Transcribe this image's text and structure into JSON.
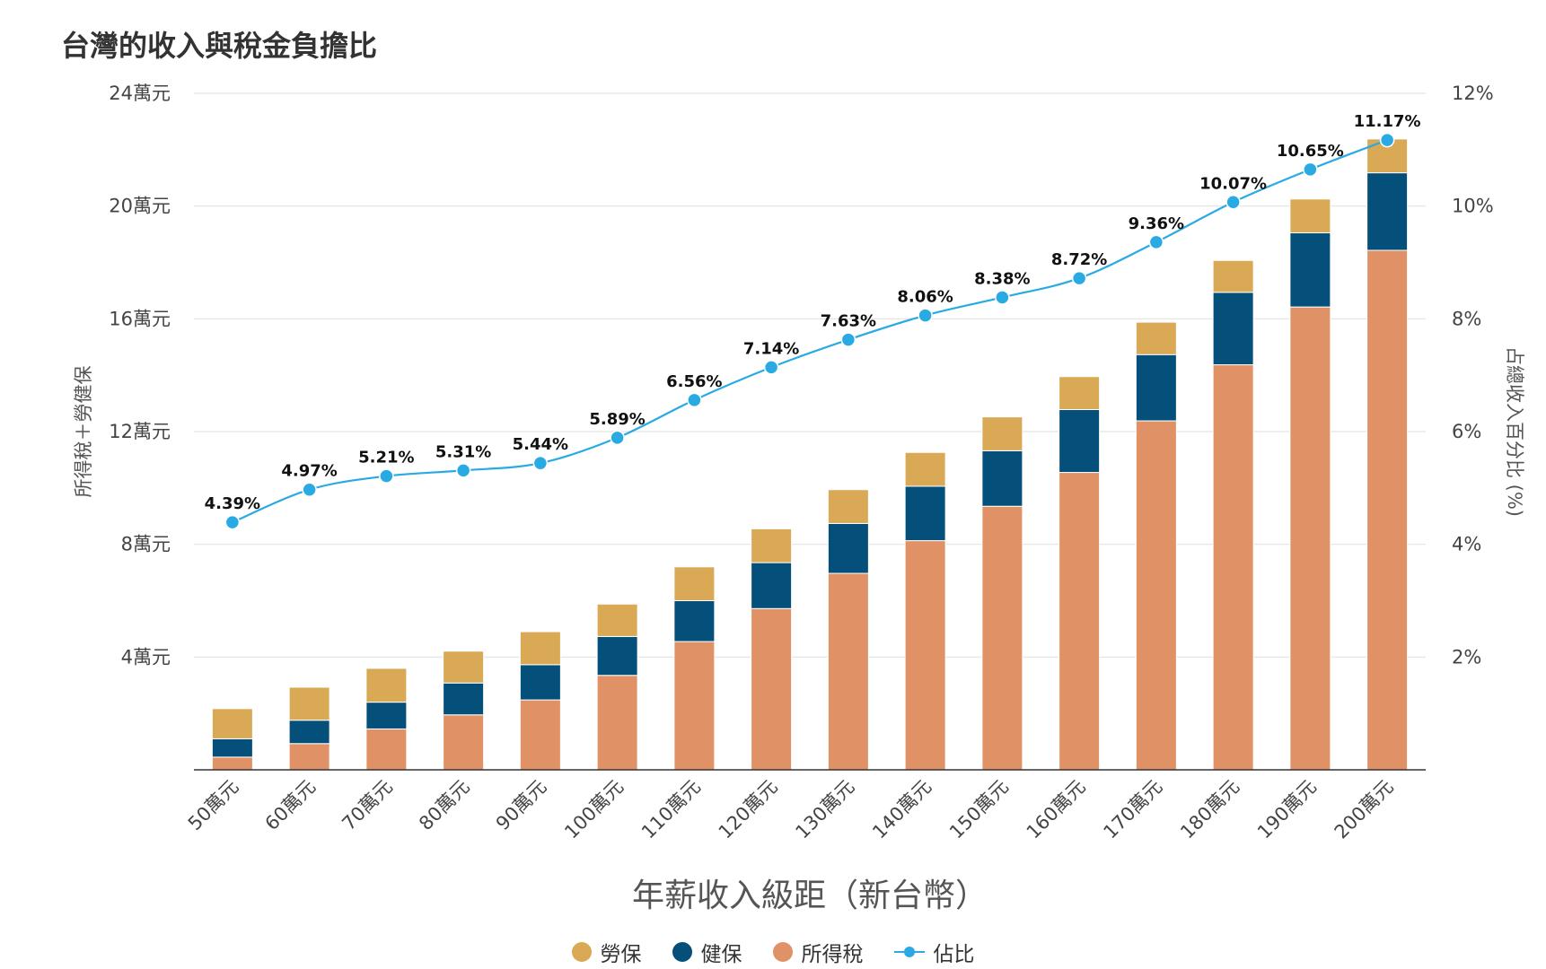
{
  "title": "台灣的收入與稅金負擔比",
  "chart_data": {
    "type": "bar",
    "stacked": true,
    "title": "台灣的收入與稅金負擔比",
    "xlabel": "年薪收入級距（新台幣）",
    "ylabel": "所得稅＋勞健保",
    "y2label": "占總收入百分比 (%)",
    "categories": [
      "50萬元",
      "60萬元",
      "70萬元",
      "80萬元",
      "90萬元",
      "100萬元",
      "110萬元",
      "120萬元",
      "130萬元",
      "140萬元",
      "150萬元",
      "160萬元",
      "170萬元",
      "180萬元",
      "190萬元",
      "200萬元"
    ],
    "ylim": [
      0,
      24
    ],
    "y_ticks": [
      {
        "value": 4,
        "label": "4萬元"
      },
      {
        "value": 8,
        "label": "8萬元"
      },
      {
        "value": 12,
        "label": "12萬元"
      },
      {
        "value": 16,
        "label": "16萬元"
      },
      {
        "value": 20,
        "label": "20萬元"
      },
      {
        "value": 24,
        "label": "24萬元"
      }
    ],
    "y2lim": [
      0,
      12
    ],
    "y2_ticks": [
      {
        "value": 2,
        "label": "2%"
      },
      {
        "value": 4,
        "label": "4%"
      },
      {
        "value": 6,
        "label": "6%"
      },
      {
        "value": 8,
        "label": "8%"
      },
      {
        "value": 10,
        "label": "10%"
      },
      {
        "value": 12,
        "label": "12%"
      }
    ],
    "grid": true,
    "legend_position": "bottom",
    "series": [
      {
        "name": "所得稅",
        "color": "#e09266",
        "values": [
          0.45,
          0.93,
          1.45,
          1.95,
          2.48,
          3.35,
          4.55,
          5.72,
          6.97,
          8.13,
          9.35,
          10.55,
          12.38,
          14.37,
          16.42,
          18.43
        ]
      },
      {
        "name": "健保",
        "color": "#05507b",
        "values": [
          0.65,
          0.83,
          0.95,
          1.13,
          1.25,
          1.38,
          1.45,
          1.63,
          1.77,
          1.93,
          1.97,
          2.23,
          2.35,
          2.57,
          2.63,
          2.75
        ]
      },
      {
        "name": "勞保",
        "color": "#d9a955",
        "values": [
          1.07,
          1.17,
          1.2,
          1.13,
          1.17,
          1.15,
          1.2,
          1.2,
          1.2,
          1.2,
          1.2,
          1.17,
          1.15,
          1.13,
          1.2,
          1.2
        ]
      }
    ],
    "ratio_series": {
      "name": "佔比",
      "color": "#29aae2",
      "values": [
        4.39,
        4.97,
        5.21,
        5.31,
        5.44,
        5.89,
        6.56,
        7.14,
        7.63,
        8.06,
        8.38,
        8.72,
        9.36,
        10.07,
        10.65,
        11.17
      ],
      "labels": [
        "4.39%",
        "4.97%",
        "5.21%",
        "5.31%",
        "5.44%",
        "5.89%",
        "6.56%",
        "7.14%",
        "7.63%",
        "8.06%",
        "8.38%",
        "8.72%",
        "9.36%",
        "10.07%",
        "10.65%",
        "11.17%"
      ]
    }
  },
  "legend": [
    {
      "label": "勞保",
      "color": "#d9a955",
      "kind": "dot"
    },
    {
      "label": "健保",
      "color": "#05507b",
      "kind": "dot"
    },
    {
      "label": "所得稅",
      "color": "#e09266",
      "kind": "dot"
    },
    {
      "label": "佔比",
      "color": "#29aae2",
      "kind": "line"
    }
  ]
}
